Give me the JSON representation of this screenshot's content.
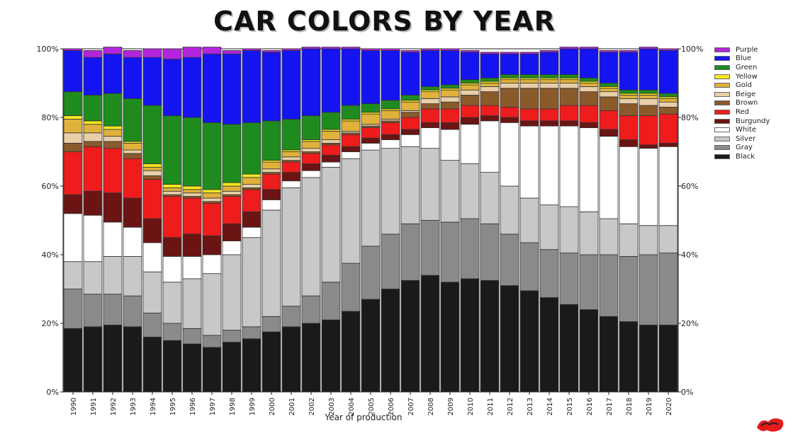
{
  "chart_data": {
    "type": "bar",
    "stacked": true,
    "title": "CAR COLORS BY YEAR",
    "xlabel": "Year of production",
    "ylabel": "",
    "ylim": [
      0,
      100
    ],
    "yticks": [
      "0%",
      "20%",
      "40%",
      "60%",
      "80%",
      "100%"
    ],
    "yaxes": "both",
    "legend_position": "right",
    "categories": [
      "1990",
      "1991",
      "1992",
      "1993",
      "1994",
      "1995",
      "1996",
      "1997",
      "1998",
      "1999",
      "2000",
      "2001",
      "2002",
      "2003",
      "2004",
      "2005",
      "2006",
      "2007",
      "2008",
      "2009",
      "2010",
      "2011",
      "2012",
      "2013",
      "2014",
      "2015",
      "2016",
      "2017",
      "2018",
      "2019",
      "2020"
    ],
    "series": [
      {
        "name": "Black",
        "color": "#1a1a1a",
        "values": [
          18.5,
          19,
          19.5,
          19,
          16,
          15,
          14,
          13,
          14.5,
          15.5,
          17.5,
          19,
          20,
          21,
          23.5,
          27,
          30,
          32.5,
          34,
          32,
          33,
          32.5,
          31,
          29.5,
          27.5,
          25.5,
          24,
          22,
          20.5,
          19.5,
          19.5
        ]
      },
      {
        "name": "Gray",
        "color": "#8a8a8a",
        "values": [
          11.5,
          9.5,
          9,
          9,
          7,
          5,
          4.5,
          3.5,
          3.5,
          3.5,
          4.5,
          6,
          8,
          11,
          14,
          15.5,
          16,
          16.5,
          16,
          17.5,
          17.5,
          16.5,
          15,
          14,
          14,
          15,
          16,
          18,
          19,
          20.5,
          21
        ]
      },
      {
        "name": "Silver",
        "color": "#c8c8c8",
        "values": [
          8,
          9.5,
          11,
          11.5,
          12,
          12,
          14.5,
          18,
          22,
          26,
          31,
          34.5,
          34.5,
          33.5,
          30.5,
          28,
          25,
          22.5,
          21,
          18,
          16,
          15,
          14,
          13,
          13,
          13.5,
          12.5,
          10.5,
          9.5,
          8.5,
          8
        ]
      },
      {
        "name": "White",
        "color": "#ffffff",
        "values": [
          14,
          13.5,
          10,
          8.5,
          8.5,
          7.5,
          6.5,
          5.5,
          4,
          3,
          3,
          2,
          2,
          1.5,
          2,
          2,
          2.5,
          3.5,
          6,
          9,
          11.5,
          15,
          18.5,
          21,
          23,
          23.5,
          24.5,
          24,
          22.5,
          22.5,
          23
        ]
      },
      {
        "name": "Burgundy",
        "color": "#6b1414",
        "values": [
          5.5,
          7,
          8.5,
          8.5,
          7,
          5.5,
          6.5,
          5.5,
          5,
          4.5,
          3,
          2.5,
          2,
          2,
          1.5,
          1.5,
          1.5,
          1.5,
          1.5,
          2,
          2,
          1.5,
          1.5,
          1.5,
          1.5,
          1.5,
          1.5,
          2,
          2,
          1,
          1
        ]
      },
      {
        "name": "Red",
        "color": "#ee1c1c",
        "values": [
          12.5,
          13,
          13,
          11.5,
          11.5,
          12,
          10.5,
          9.5,
          8,
          6.5,
          4.5,
          3,
          3,
          3,
          3.5,
          3,
          3.5,
          3.5,
          4,
          4,
          3.5,
          3,
          3,
          3.5,
          3.5,
          4.5,
          5,
          5.5,
          7,
          8.5,
          8.5
        ]
      },
      {
        "name": "Brown",
        "color": "#8b5a2b",
        "values": [
          2.5,
          1.5,
          2,
          1.5,
          1,
          0.5,
          0.5,
          0.5,
          0.5,
          0.5,
          0.5,
          0.5,
          0.5,
          0.5,
          0.5,
          0.5,
          0.5,
          1.5,
          1.5,
          2,
          3,
          4,
          5.5,
          6,
          6,
          5,
          4,
          4,
          3.5,
          3,
          2
        ]
      },
      {
        "name": "Beige",
        "color": "#e8cfa8",
        "values": [
          3,
          2.5,
          1.5,
          1,
          1.5,
          1,
          1,
          1,
          1,
          1,
          1,
          1,
          1,
          1,
          0.5,
          0.5,
          0.5,
          0.5,
          1.5,
          1.5,
          1.5,
          1.5,
          1.5,
          1.5,
          1.5,
          1.5,
          1.5,
          1.5,
          1.5,
          2,
          1.5
        ]
      },
      {
        "name": "Gold",
        "color": "#e0b23c",
        "values": [
          4,
          2.5,
          2,
          2,
          1,
          1,
          1,
          1.5,
          1.5,
          2,
          2,
          1.5,
          2,
          2.5,
          3,
          3,
          2.5,
          2.5,
          2,
          2,
          1.5,
          1,
          1,
          1,
          1,
          1,
          1,
          1,
          1,
          1,
          1
        ]
      },
      {
        "name": "Yellow",
        "color": "#f5e81e",
        "values": [
          1,
          1,
          1,
          0.5,
          1,
          1,
          1,
          1,
          1,
          1,
          0.5,
          0.5,
          0.5,
          0.5,
          0.5,
          0.5,
          0.5,
          0.5,
          0.5,
          0.5,
          0.5,
          0.5,
          0.5,
          0.5,
          0.5,
          0.5,
          0.5,
          0.5,
          0.5,
          0.5,
          0.5
        ]
      },
      {
        "name": "Green",
        "color": "#1f8b1f",
        "values": [
          7,
          7.5,
          9.5,
          12.5,
          17,
          20,
          20,
          19.5,
          17,
          15,
          11.5,
          9,
          7,
          5,
          4,
          2.5,
          2.5,
          1.5,
          1,
          1,
          1,
          1,
          1,
          1,
          1,
          1,
          1,
          1,
          1,
          1,
          1
        ]
      },
      {
        "name": "Blue",
        "color": "#1414f0",
        "values": [
          12,
          11,
          11.5,
          12,
          14,
          16.5,
          17.5,
          20,
          20.5,
          21,
          20,
          20,
          19.5,
          18.5,
          16.5,
          15.5,
          14.5,
          12.5,
          10.5,
          10,
          8,
          7,
          6,
          6,
          6.5,
          7.5,
          8.5,
          9,
          11,
          12,
          12.5
        ]
      },
      {
        "name": "Purple",
        "color": "#b324dd",
        "values": [
          0.5,
          2,
          2,
          2,
          2.5,
          3,
          3,
          2,
          1,
          0.5,
          0.5,
          0.5,
          0.5,
          0.5,
          0.5,
          0.5,
          0.5,
          0.5,
          0.5,
          0.5,
          0.5,
          0.5,
          0.5,
          0.5,
          0.5,
          0.5,
          0.5,
          0.5,
          0.5,
          0.5,
          0.5
        ]
      }
    ],
    "legend_order": [
      "Purple",
      "Blue",
      "Green",
      "Yellow",
      "Gold",
      "Beige",
      "Brown",
      "Red",
      "Burgundy",
      "White",
      "Silver",
      "Gray",
      "Black"
    ]
  },
  "watermark": {
    "icon": "site-logo-watermark",
    "colors": [
      "#e21b1b",
      "#222222"
    ]
  }
}
